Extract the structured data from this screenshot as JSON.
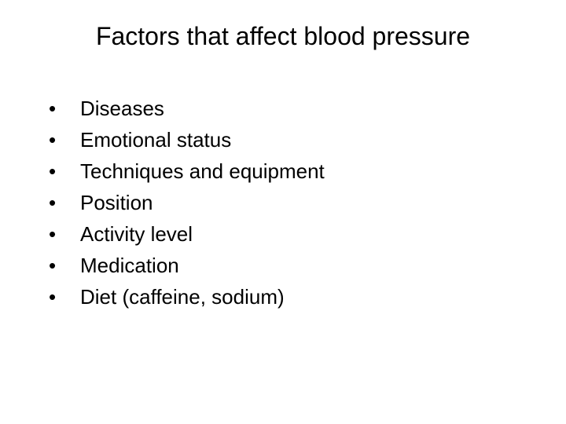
{
  "slide": {
    "title": "Factors that affect blood pressure",
    "title_fontsize": 32,
    "title_color": "#000000",
    "background_color": "#ffffff",
    "text_color": "#000000",
    "font_family": "Arial",
    "bullet_fontsize": 26,
    "bullet_char": "•",
    "items": [
      "Diseases",
      "Emotional status",
      "Techniques and equipment",
      "Position",
      "Activity level",
      "Medication",
      "Diet (caffeine, sodium)"
    ]
  }
}
